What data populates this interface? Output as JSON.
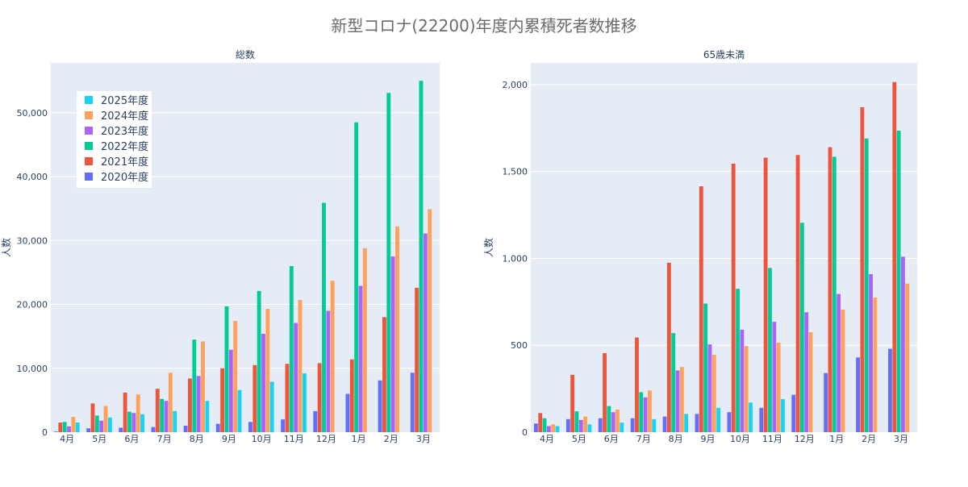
{
  "title": "新型コロナ(22200)年度内累積死者数推移",
  "colors": {
    "2020年度": "#636efa",
    "2021年度": "#ef553b",
    "2022年度": "#00cc96",
    "2023年度": "#ab63fa",
    "2024年度": "#ffa15a",
    "2025年度": "#19d3f3",
    "plot_bg": "#e5ecf6",
    "grid": "#ffffff",
    "text": "#2a3f5f"
  },
  "chart_data": [
    {
      "type": "bar",
      "title": "総数",
      "ylabel": "人数",
      "categories": [
        "4月",
        "5月",
        "6月",
        "7月",
        "8月",
        "9月",
        "10月",
        "11月",
        "12月",
        "1月",
        "2月",
        "3月"
      ],
      "ylim": [
        0,
        57800
      ],
      "yticks": [
        0,
        10000,
        20000,
        30000,
        40000,
        50000
      ],
      "yticklabels": [
        "0",
        "10,000",
        "20,000",
        "30,000",
        "40,000",
        "50,000"
      ],
      "legend_position": "top-left",
      "series": [
        {
          "name": "2020年度",
          "values": [
            100,
            600,
            700,
            800,
            1000,
            1300,
            1600,
            2000,
            3300,
            6000,
            8100,
            9300
          ]
        },
        {
          "name": "2021年度",
          "values": [
            1500,
            4500,
            6200,
            6800,
            8400,
            10000,
            10500,
            10700,
            10800,
            11400,
            18000,
            22600
          ]
        },
        {
          "name": "2022年度",
          "values": [
            1600,
            2600,
            3200,
            5200,
            14500,
            19700,
            22100,
            26000,
            35900,
            48500,
            53100,
            55000
          ]
        },
        {
          "name": "2023年度",
          "values": [
            900,
            1800,
            3000,
            4900,
            8800,
            12900,
            15400,
            17100,
            19000,
            22900,
            27500,
            31100
          ]
        },
        {
          "name": "2024年度",
          "values": [
            2400,
            4100,
            5900,
            9300,
            14200,
            17400,
            19300,
            20700,
            23700,
            28800,
            32200,
            34900
          ]
        },
        {
          "name": "2025年度",
          "values": [
            1500,
            2300,
            2800,
            3300,
            4900,
            6600,
            7900,
            9200,
            null,
            null,
            null,
            null
          ]
        }
      ]
    },
    {
      "type": "bar",
      "title": "65歳未満",
      "ylabel": "人数",
      "categories": [
        "4月",
        "5月",
        "6月",
        "7月",
        "8月",
        "9月",
        "10月",
        "11月",
        "12月",
        "1月",
        "2月",
        "3月"
      ],
      "ylim": [
        0,
        2125
      ],
      "yticks": [
        0,
        500,
        1000,
        1500,
        2000
      ],
      "yticklabels": [
        "0",
        "500",
        "1,000",
        "1,500",
        "2,000"
      ],
      "series": [
        {
          "name": "2020年度",
          "values": [
            50,
            75,
            80,
            80,
            90,
            105,
            115,
            140,
            215,
            340,
            430,
            480
          ]
        },
        {
          "name": "2021年度",
          "values": [
            110,
            330,
            455,
            545,
            975,
            1415,
            1545,
            1580,
            1595,
            1640,
            1870,
            2015
          ]
        },
        {
          "name": "2022年度",
          "values": [
            80,
            120,
            150,
            230,
            570,
            740,
            825,
            945,
            1205,
            1585,
            1690,
            1735
          ]
        },
        {
          "name": "2023年度",
          "values": [
            35,
            70,
            115,
            200,
            355,
            505,
            590,
            635,
            690,
            795,
            910,
            1010
          ]
        },
        {
          "name": "2024年度",
          "values": [
            45,
            90,
            130,
            240,
            375,
            445,
            495,
            515,
            575,
            705,
            775,
            855
          ]
        },
        {
          "name": "2025年度",
          "values": [
            35,
            45,
            55,
            75,
            105,
            140,
            170,
            190,
            null,
            null,
            null,
            null
          ]
        }
      ]
    }
  ]
}
